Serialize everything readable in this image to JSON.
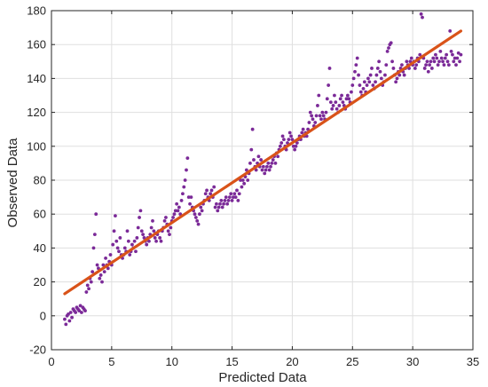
{
  "chart_data": {
    "type": "scatter",
    "xlabel": "Predicted Data",
    "ylabel": "Observed Data",
    "xlim": [
      0,
      35
    ],
    "ylim": [
      -20,
      180
    ],
    "xticks": [
      0,
      5,
      10,
      15,
      20,
      25,
      30,
      35
    ],
    "yticks": [
      -20,
      0,
      20,
      40,
      60,
      80,
      100,
      120,
      140,
      160,
      180
    ],
    "grid": true,
    "colors": {
      "points": "#7b2a98",
      "fit_line": "#d95319",
      "grid": "#dfdfdf",
      "axes": "#262626"
    },
    "fit_line": {
      "x": [
        1.1,
        34
      ],
      "y": [
        13,
        168
      ]
    },
    "series": [
      {
        "points": [
          [
            1.1,
            -2
          ],
          [
            1.2,
            -5
          ],
          [
            1.3,
            0
          ],
          [
            1.4,
            1
          ],
          [
            1.5,
            -3
          ],
          [
            1.6,
            2
          ],
          [
            1.7,
            -1
          ],
          [
            1.8,
            4
          ],
          [
            1.9,
            3
          ],
          [
            2.0,
            2
          ],
          [
            2.1,
            5
          ],
          [
            2.2,
            4
          ],
          [
            2.3,
            3
          ],
          [
            2.4,
            6
          ],
          [
            2.5,
            2
          ],
          [
            2.6,
            5
          ],
          [
            2.7,
            4
          ],
          [
            2.8,
            3
          ],
          [
            2.9,
            14
          ],
          [
            3.0,
            18
          ],
          [
            3.1,
            16
          ],
          [
            3.2,
            22
          ],
          [
            3.3,
            20
          ],
          [
            3.4,
            26
          ],
          [
            3.5,
            40
          ],
          [
            3.6,
            48
          ],
          [
            3.7,
            60
          ],
          [
            3.8,
            30
          ],
          [
            3.9,
            28
          ],
          [
            4.0,
            22
          ],
          [
            4.1,
            24
          ],
          [
            4.2,
            20
          ],
          [
            4.3,
            30
          ],
          [
            4.4,
            26
          ],
          [
            4.5,
            34
          ],
          [
            4.6,
            30
          ],
          [
            4.7,
            28
          ],
          [
            4.8,
            32
          ],
          [
            4.9,
            36
          ],
          [
            5.0,
            30
          ],
          [
            5.1,
            42
          ],
          [
            5.2,
            50
          ],
          [
            5.3,
            59
          ],
          [
            5.4,
            44
          ],
          [
            5.5,
            40
          ],
          [
            5.6,
            38
          ],
          [
            5.7,
            46
          ],
          [
            5.8,
            36
          ],
          [
            5.9,
            34
          ],
          [
            6.0,
            36
          ],
          [
            6.1,
            40
          ],
          [
            6.2,
            38
          ],
          [
            6.3,
            50
          ],
          [
            6.4,
            44
          ],
          [
            6.5,
            36
          ],
          [
            6.6,
            38
          ],
          [
            6.7,
            42
          ],
          [
            6.8,
            40
          ],
          [
            6.9,
            44
          ],
          [
            7.0,
            38
          ],
          [
            7.1,
            46
          ],
          [
            7.2,
            52
          ],
          [
            7.3,
            58
          ],
          [
            7.4,
            62
          ],
          [
            7.5,
            50
          ],
          [
            7.6,
            48
          ],
          [
            7.7,
            46
          ],
          [
            7.8,
            44
          ],
          [
            7.9,
            42
          ],
          [
            8.0,
            46
          ],
          [
            8.1,
            44
          ],
          [
            8.2,
            48
          ],
          [
            8.3,
            52
          ],
          [
            8.4,
            56
          ],
          [
            8.5,
            50
          ],
          [
            8.6,
            46
          ],
          [
            8.7,
            44
          ],
          [
            8.8,
            48
          ],
          [
            8.9,
            50
          ],
          [
            9.0,
            46
          ],
          [
            9.1,
            44
          ],
          [
            9.2,
            50
          ],
          [
            9.3,
            52
          ],
          [
            9.4,
            56
          ],
          [
            9.5,
            58
          ],
          [
            9.6,
            54
          ],
          [
            9.7,
            50
          ],
          [
            9.8,
            48
          ],
          [
            9.9,
            52
          ],
          [
            10.0,
            56
          ],
          [
            10.1,
            58
          ],
          [
            10.2,
            60
          ],
          [
            10.3,
            62
          ],
          [
            10.4,
            66
          ],
          [
            10.5,
            62
          ],
          [
            10.6,
            64
          ],
          [
            10.7,
            60
          ],
          [
            10.8,
            68
          ],
          [
            10.9,
            72
          ],
          [
            11.0,
            76
          ],
          [
            11.1,
            80
          ],
          [
            11.2,
            86
          ],
          [
            11.3,
            93
          ],
          [
            11.4,
            70
          ],
          [
            11.5,
            66
          ],
          [
            11.6,
            70
          ],
          [
            11.7,
            64
          ],
          [
            11.8,
            62
          ],
          [
            11.9,
            60
          ],
          [
            12.0,
            58
          ],
          [
            12.1,
            56
          ],
          [
            12.2,
            54
          ],
          [
            12.3,
            60
          ],
          [
            12.4,
            64
          ],
          [
            12.5,
            62
          ],
          [
            12.6,
            66
          ],
          [
            12.7,
            68
          ],
          [
            12.8,
            72
          ],
          [
            12.9,
            74
          ],
          [
            13.0,
            70
          ],
          [
            13.1,
            68
          ],
          [
            13.2,
            72
          ],
          [
            13.3,
            74
          ],
          [
            13.4,
            70
          ],
          [
            13.5,
            76
          ],
          [
            13.6,
            64
          ],
          [
            13.7,
            66
          ],
          [
            13.8,
            62
          ],
          [
            13.9,
            64
          ],
          [
            14.0,
            66
          ],
          [
            14.1,
            68
          ],
          [
            14.2,
            64
          ],
          [
            14.3,
            66
          ],
          [
            14.4,
            68
          ],
          [
            14.5,
            70
          ],
          [
            14.6,
            66
          ],
          [
            14.7,
            68
          ],
          [
            14.8,
            70
          ],
          [
            14.9,
            72
          ],
          [
            15.0,
            68
          ],
          [
            15.1,
            70
          ],
          [
            15.2,
            72
          ],
          [
            15.3,
            70
          ],
          [
            15.4,
            74
          ],
          [
            15.5,
            68
          ],
          [
            15.6,
            72
          ],
          [
            15.7,
            80
          ],
          [
            15.8,
            76
          ],
          [
            15.9,
            80
          ],
          [
            16.0,
            78
          ],
          [
            16.1,
            82
          ],
          [
            16.2,
            86
          ],
          [
            16.3,
            80
          ],
          [
            16.4,
            84
          ],
          [
            16.5,
            90
          ],
          [
            16.6,
            98
          ],
          [
            16.7,
            110
          ],
          [
            16.8,
            92
          ],
          [
            16.9,
            88
          ],
          [
            17.0,
            86
          ],
          [
            17.1,
            90
          ],
          [
            17.2,
            94
          ],
          [
            17.3,
            88
          ],
          [
            17.4,
            92
          ],
          [
            17.5,
            86
          ],
          [
            17.6,
            88
          ],
          [
            17.7,
            84
          ],
          [
            17.8,
            86
          ],
          [
            17.9,
            88
          ],
          [
            18.0,
            90
          ],
          [
            18.1,
            86
          ],
          [
            18.2,
            88
          ],
          [
            18.3,
            90
          ],
          [
            18.4,
            92
          ],
          [
            18.5,
            94
          ],
          [
            18.6,
            90
          ],
          [
            18.7,
            96
          ],
          [
            18.8,
            94
          ],
          [
            18.9,
            98
          ],
          [
            19.0,
            100
          ],
          [
            19.1,
            102
          ],
          [
            19.2,
            106
          ],
          [
            19.3,
            104
          ],
          [
            19.4,
            100
          ],
          [
            19.5,
            98
          ],
          [
            19.6,
            102
          ],
          [
            19.7,
            104
          ],
          [
            19.8,
            108
          ],
          [
            19.9,
            106
          ],
          [
            20.0,
            104
          ],
          [
            20.1,
            100
          ],
          [
            20.2,
            98
          ],
          [
            20.3,
            100
          ],
          [
            20.4,
            102
          ],
          [
            20.5,
            104
          ],
          [
            20.6,
            106
          ],
          [
            20.7,
            104
          ],
          [
            20.8,
            108
          ],
          [
            20.9,
            110
          ],
          [
            21.0,
            106
          ],
          [
            21.1,
            108
          ],
          [
            21.2,
            106
          ],
          [
            21.3,
            110
          ],
          [
            21.4,
            114
          ],
          [
            21.5,
            120
          ],
          [
            21.6,
            118
          ],
          [
            21.7,
            116
          ],
          [
            21.8,
            112
          ],
          [
            21.9,
            114
          ],
          [
            22.0,
            118
          ],
          [
            22.1,
            124
          ],
          [
            22.2,
            130
          ],
          [
            22.3,
            118
          ],
          [
            22.4,
            116
          ],
          [
            22.5,
            120
          ],
          [
            22.6,
            118
          ],
          [
            22.7,
            116
          ],
          [
            22.8,
            120
          ],
          [
            22.9,
            128
          ],
          [
            23.0,
            136
          ],
          [
            23.1,
            146
          ],
          [
            23.2,
            126
          ],
          [
            23.3,
            122
          ],
          [
            23.4,
            124
          ],
          [
            23.5,
            130
          ],
          [
            23.6,
            126
          ],
          [
            23.7,
            122
          ],
          [
            23.8,
            120
          ],
          [
            23.9,
            124
          ],
          [
            24.0,
            128
          ],
          [
            24.1,
            130
          ],
          [
            24.2,
            126
          ],
          [
            24.3,
            124
          ],
          [
            24.4,
            122
          ],
          [
            24.5,
            128
          ],
          [
            24.6,
            130
          ],
          [
            24.7,
            128
          ],
          [
            24.8,
            126
          ],
          [
            24.9,
            132
          ],
          [
            25.0,
            136
          ],
          [
            25.1,
            140
          ],
          [
            25.2,
            144
          ],
          [
            25.3,
            148
          ],
          [
            25.4,
            152
          ],
          [
            25.5,
            142
          ],
          [
            25.6,
            136
          ],
          [
            25.7,
            132
          ],
          [
            25.8,
            130
          ],
          [
            25.9,
            134
          ],
          [
            26.0,
            138
          ],
          [
            26.1,
            132
          ],
          [
            26.2,
            136
          ],
          [
            26.3,
            140
          ],
          [
            26.4,
            138
          ],
          [
            26.5,
            142
          ],
          [
            26.6,
            146
          ],
          [
            26.7,
            136
          ],
          [
            26.8,
            134
          ],
          [
            26.9,
            138
          ],
          [
            27.0,
            142
          ],
          [
            27.1,
            146
          ],
          [
            27.2,
            150
          ],
          [
            27.3,
            144
          ],
          [
            27.4,
            140
          ],
          [
            27.5,
            136
          ],
          [
            27.6,
            138
          ],
          [
            27.7,
            142
          ],
          [
            27.8,
            148
          ],
          [
            27.9,
            156
          ],
          [
            28.0,
            158
          ],
          [
            28.1,
            160
          ],
          [
            28.2,
            161
          ],
          [
            28.3,
            150
          ],
          [
            28.4,
            146
          ],
          [
            28.5,
            142
          ],
          [
            28.6,
            138
          ],
          [
            28.7,
            140
          ],
          [
            28.8,
            144
          ],
          [
            28.9,
            142
          ],
          [
            29.0,
            146
          ],
          [
            29.1,
            148
          ],
          [
            29.2,
            144
          ],
          [
            29.3,
            142
          ],
          [
            29.4,
            146
          ],
          [
            29.5,
            150
          ],
          [
            29.6,
            148
          ],
          [
            29.7,
            146
          ],
          [
            29.8,
            150
          ],
          [
            29.9,
            152
          ],
          [
            30.0,
            148
          ],
          [
            30.1,
            150
          ],
          [
            30.2,
            146
          ],
          [
            30.3,
            148
          ],
          [
            30.4,
            152
          ],
          [
            30.5,
            150
          ],
          [
            30.6,
            154
          ],
          [
            30.7,
            178
          ],
          [
            30.8,
            176
          ],
          [
            30.9,
            152
          ],
          [
            31.0,
            146
          ],
          [
            31.1,
            148
          ],
          [
            31.2,
            150
          ],
          [
            31.3,
            144
          ],
          [
            31.4,
            148
          ],
          [
            31.5,
            150
          ],
          [
            31.6,
            146
          ],
          [
            31.7,
            152
          ],
          [
            31.8,
            150
          ],
          [
            31.9,
            154
          ],
          [
            32.0,
            152
          ],
          [
            32.1,
            148
          ],
          [
            32.2,
            150
          ],
          [
            32.3,
            156
          ],
          [
            32.4,
            152
          ],
          [
            32.5,
            150
          ],
          [
            32.6,
            148
          ],
          [
            32.7,
            152
          ],
          [
            32.8,
            154
          ],
          [
            32.9,
            150
          ],
          [
            33.0,
            148
          ],
          [
            33.1,
            168
          ],
          [
            33.2,
            156
          ],
          [
            33.3,
            154
          ],
          [
            33.4,
            150
          ],
          [
            33.5,
            152
          ],
          [
            33.6,
            148
          ],
          [
            33.7,
            152
          ],
          [
            33.8,
            155
          ],
          [
            33.9,
            150
          ],
          [
            34.0,
            154
          ]
        ]
      }
    ]
  }
}
